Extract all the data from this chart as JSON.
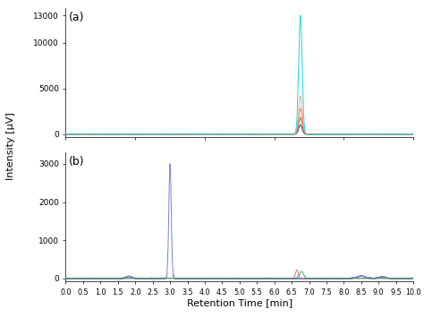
{
  "title_a": "(a)",
  "title_b": "(b)",
  "xlabel": "Retention Time [min]",
  "ylabel": "Intensity [µV]",
  "xlim": [
    0.0,
    10.0
  ],
  "ylim_a": [
    -300,
    13800
  ],
  "ylim_b": [
    -80,
    3300
  ],
  "yticks_a": [
    0,
    5000,
    10000,
    13000
  ],
  "yticks_b": [
    0,
    1000,
    2000,
    3000
  ],
  "background_color": "#ffffff",
  "lines_a": {
    "colors": [
      "#00d4d8",
      "#e8a090",
      "#e07848",
      "#c84830",
      "#2a2a6a"
    ],
    "peak_x": 6.75,
    "peak_heights": [
      13000,
      4200,
      2800,
      1800,
      1000
    ],
    "peak_sigma": 0.05
  },
  "lines_b": {
    "color": "#6878c0",
    "color2": "#d06868",
    "color3": "#20a060",
    "peak1_x": 3.0,
    "peak1_height": 3000,
    "peak1_sigma": 0.035,
    "peak2_x": 6.78,
    "peak2_height": 180,
    "peak2_sigma": 0.06,
    "peak3_x": 6.65,
    "peak3_height": 220,
    "peak3_sigma": 0.04
  },
  "noise_amp_a": 3,
  "noise_amp_b": 5,
  "xticks": [
    0.0,
    0.5,
    1.0,
    1.5,
    2.0,
    2.5,
    3.0,
    3.5,
    4.0,
    4.5,
    5.0,
    5.5,
    6.0,
    6.5,
    7.0,
    7.5,
    8.0,
    8.5,
    9.0,
    9.5,
    10.0
  ],
  "xtick_labels": [
    "0.0",
    "0.5",
    "1.0",
    "1.5",
    "2.0",
    "2.5",
    "3.0",
    "3.5",
    "4.0",
    "4.5",
    "5.0",
    "5.5",
    "6.0",
    "6.5",
    "7.0",
    "7.5",
    "8.0",
    "8.5",
    "9.0",
    "9.5",
    "10.0"
  ]
}
